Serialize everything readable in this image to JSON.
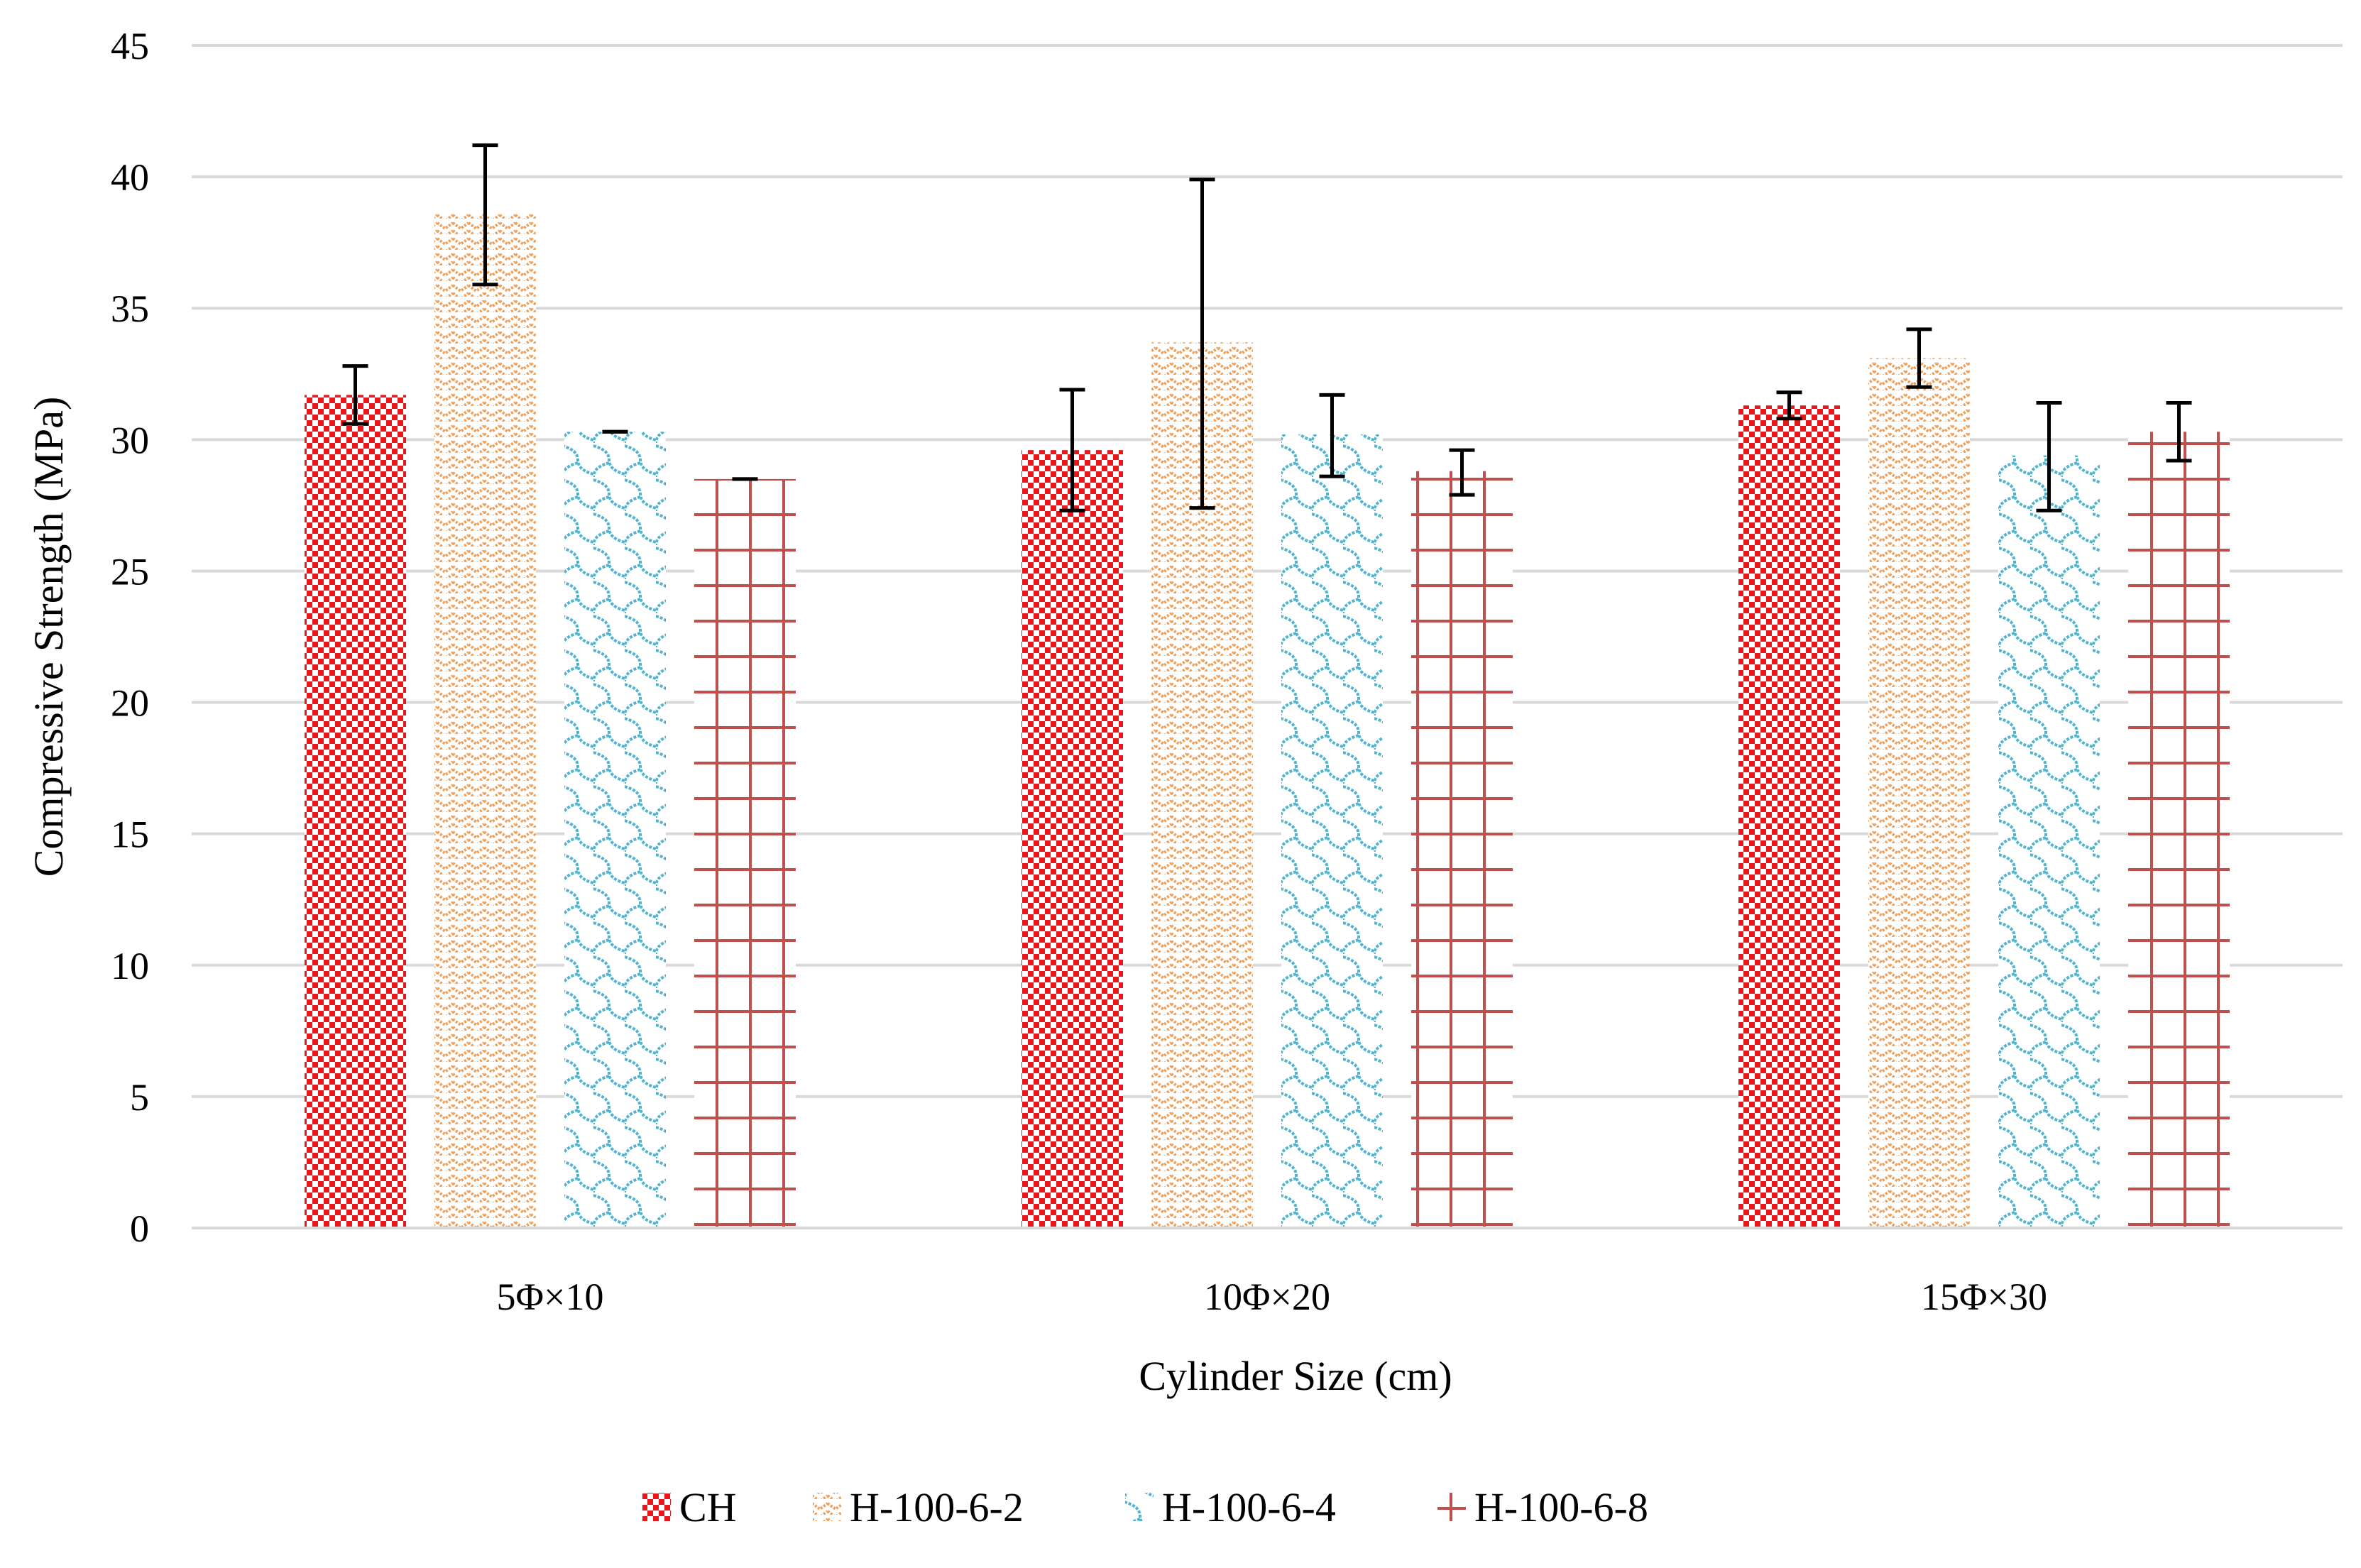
{
  "chart_data": {
    "type": "bar",
    "title": "",
    "xlabel": "Cylinder Size (cm)",
    "ylabel": "Compressive Strength (MPa)",
    "ylim": [
      0,
      45
    ],
    "ytick_step": 5,
    "ytick_labels": [
      "0",
      "5",
      "10",
      "15",
      "20",
      "25",
      "30",
      "35",
      "40",
      "45"
    ],
    "grid": true,
    "legend_position": "bottom",
    "categories": [
      "5Φ×10",
      "10Φ×20",
      "15Φ×30"
    ],
    "series": [
      {
        "name": "CH",
        "color": "#e8171c",
        "pattern": "checker",
        "values": [
          31.7,
          29.6,
          31.3
        ],
        "err_low": [
          30.6,
          27.3,
          30.8
        ],
        "err_high": [
          32.8,
          31.9,
          31.8
        ]
      },
      {
        "name": "H-100-6-2",
        "color": "#f0a05a",
        "pattern": "zigzag",
        "values": [
          38.6,
          33.7,
          33.1
        ],
        "err_low": [
          35.9,
          27.4,
          32.0
        ],
        "err_high": [
          41.2,
          39.9,
          34.2
        ]
      },
      {
        "name": "H-100-6-4",
        "color": "#4fb4d0",
        "pattern": "wave",
        "values": [
          30.3,
          30.2,
          29.4
        ],
        "err_low": [
          30.3,
          28.6,
          27.3
        ],
        "err_high": [
          30.3,
          31.7,
          31.4
        ]
      },
      {
        "name": "H-100-6-8",
        "color": "#c0504d",
        "pattern": "grid",
        "values": [
          28.5,
          28.8,
          30.3
        ],
        "err_low": [
          28.5,
          27.9,
          29.2
        ],
        "err_high": [
          28.5,
          29.6,
          31.4
        ]
      }
    ]
  }
}
